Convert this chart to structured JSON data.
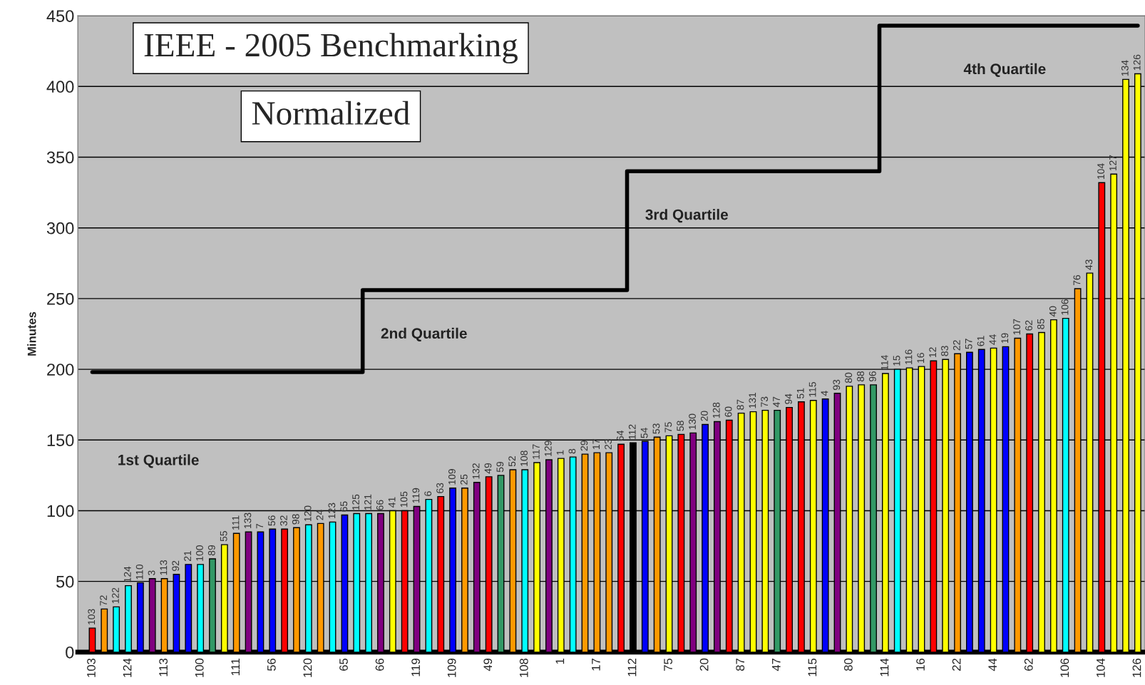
{
  "chart_data": {
    "type": "bar",
    "title": "IEEE - 2005 Benchmarking",
    "subtitle": "Normalized",
    "ylabel": "Minutes",
    "categories": [
      "103",
      "72",
      "122",
      "124",
      "110",
      "3",
      "113",
      "92",
      "21",
      "100",
      "89",
      "55",
      "111",
      "133",
      "7",
      "56",
      "32",
      "98",
      "120",
      "24",
      "123",
      "65",
      "125",
      "121",
      "66",
      "41",
      "105",
      "119",
      "6",
      "63",
      "109",
      "25",
      "132",
      "49",
      "59",
      "52",
      "108",
      "117",
      "129",
      "1",
      "8",
      "29",
      "17",
      "23",
      "64",
      "112",
      "54",
      "53",
      "75",
      "58",
      "130",
      "20",
      "128",
      "60",
      "87",
      "131",
      "73",
      "47",
      "94",
      "51",
      "115",
      "4",
      "93",
      "80",
      "88",
      "96",
      "114",
      "15",
      "116",
      "16",
      "12",
      "83",
      "22",
      "57",
      "61",
      "44",
      "19",
      "107",
      "62",
      "85",
      "40",
      "106",
      "76",
      "43",
      "104",
      "127",
      "134",
      "126"
    ],
    "values": [
      17,
      30.5,
      32,
      47,
      49,
      52,
      52,
      55,
      62,
      62,
      66,
      76,
      84,
      85,
      85,
      87,
      87,
      88,
      90,
      91,
      92,
      97,
      98,
      98,
      98,
      100,
      100,
      103,
      108,
      110,
      116,
      116,
      120,
      124,
      125,
      129,
      129,
      134,
      136,
      137,
      138,
      140,
      141,
      141,
      147,
      148,
      149,
      152,
      153,
      154,
      155,
      161,
      163,
      164,
      169,
      170,
      171,
      171,
      173,
      177,
      178,
      179,
      183,
      188,
      189,
      189,
      197,
      200,
      201,
      202,
      206,
      207,
      211,
      212,
      214,
      215,
      216,
      222,
      225,
      226,
      235,
      236,
      257,
      268,
      332,
      338,
      405,
      409
    ],
    "colors": [
      "#ff0000",
      "#ff9900",
      "#00ffff",
      "#00ffff",
      "#0000ff",
      "#800080",
      "#ff9900",
      "#0000ff",
      "#0000ff",
      "#00ffff",
      "#339966",
      "#ffff00",
      "#ff9900",
      "#800080",
      "#0000ff",
      "#0000ff",
      "#ff0000",
      "#ff9900",
      "#00ffff",
      "#ff9900",
      "#00ffff",
      "#0000ff",
      "#00ffff",
      "#00ffff",
      "#800080",
      "#ffff00",
      "#ff0000",
      "#800080",
      "#00ffff",
      "#ff0000",
      "#0000ff",
      "#ff9900",
      "#800080",
      "#ff0000",
      "#339966",
      "#ff9900",
      "#00ffff",
      "#ffff00",
      "#800080",
      "#ffff00",
      "#00ffff",
      "#ff9900",
      "#ff9900",
      "#ff9900",
      "#ff0000",
      "#000000",
      "#0000ff",
      "#ff9900",
      "#ffff00",
      "#ff0000",
      "#800080",
      "#0000ff",
      "#800080",
      "#ff0000",
      "#ffff00",
      "#ffff00",
      "#ffff00",
      "#339966",
      "#ff0000",
      "#ff0000",
      "#ffff00",
      "#0000ff",
      "#800080",
      "#ffff00",
      "#ffff00",
      "#339966",
      "#ffff00",
      "#00ffff",
      "#ffff00",
      "#ffff00",
      "#ff0000",
      "#ffff00",
      "#ff9900",
      "#0000ff",
      "#0000ff",
      "#ffff00",
      "#0000ff",
      "#ff9900",
      "#ff0000",
      "#ffff00",
      "#ffff00",
      "#00ffff",
      "#ff9900",
      "#ffff00",
      "#ff0000",
      "#ffff00",
      "#ffff00",
      "#ffff00"
    ],
    "series": [
      {
        "type": "step",
        "color": "#000000",
        "values": [
          198,
          198,
          198,
          198,
          198,
          198,
          198,
          198,
          198,
          198,
          198,
          198,
          198,
          198,
          198,
          198,
          198,
          198,
          198,
          198,
          198,
          198,
          198,
          256,
          256,
          256,
          256,
          256,
          256,
          256,
          256,
          256,
          256,
          256,
          256,
          256,
          256,
          256,
          256,
          256,
          256,
          256,
          256,
          256,
          256,
          340,
          340,
          340,
          340,
          340,
          340,
          340,
          340,
          340,
          340,
          340,
          340,
          340,
          340,
          340,
          340,
          340,
          340,
          340,
          340,
          340,
          443,
          443,
          443,
          443,
          443,
          443,
          443,
          443,
          443,
          443,
          443,
          443,
          443,
          443,
          443,
          443,
          443,
          443,
          443,
          443,
          443,
          443
        ]
      }
    ],
    "annotations": [
      "1st Quartile",
      "2nd Quartile",
      "3rd Quartile",
      "4th Quartile"
    ],
    "ylim": [
      0,
      450
    ],
    "yticks": [
      0,
      50,
      100,
      150,
      200,
      250,
      300,
      350,
      400,
      450
    ],
    "grid": "y",
    "legend": false
  }
}
